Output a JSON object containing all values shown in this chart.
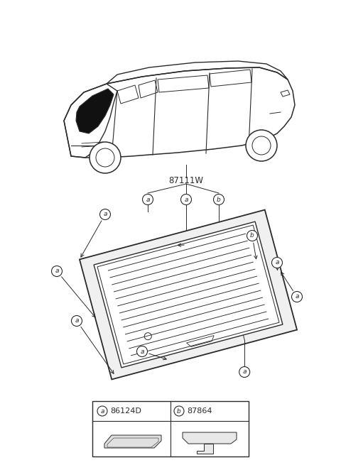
{
  "bg_color": "#ffffff",
  "line_color": "#2a2a2a",
  "part_number_main": "87111W",
  "part_a_code": "86124D",
  "part_b_code": "87864"
}
